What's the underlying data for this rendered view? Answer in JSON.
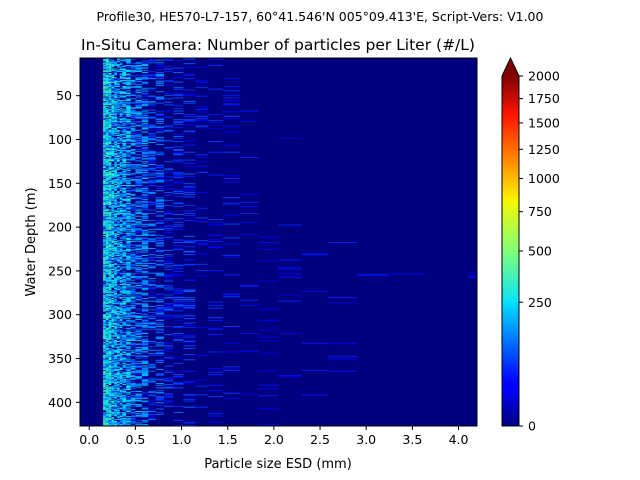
{
  "chart_data": {
    "type": "heatmap",
    "suptitle": "Profile30, HE570-L7-157, 60°41.546'N 005°09.413'E, Script-Vers: V1.00",
    "title": "In-Situ Camera: Number of particles per Liter (#/L)",
    "xlabel": "Particle size ESD (mm)",
    "ylabel": "Water Depth (m)",
    "xlim": [
      -0.1,
      4.2
    ],
    "ylim": [
      427,
      7
    ],
    "y_inverted": true,
    "x_ticks": [
      "0.0",
      "0.5",
      "1.0",
      "1.5",
      "2.0",
      "2.5",
      "3.0",
      "3.5",
      "4.0"
    ],
    "y_ticks": [
      "50",
      "100",
      "150",
      "200",
      "250",
      "300",
      "350",
      "400"
    ],
    "colorbar": {
      "colormap": "jet",
      "min": 0,
      "max": 2000,
      "scale": "power-like (square-root spacing)",
      "extend": "max",
      "ticks": [
        "0",
        "250",
        "500",
        "750",
        "1000",
        "1250",
        "1500",
        "1750",
        "2000"
      ]
    },
    "size_bins_mm": [
      0.15,
      0.18,
      0.21,
      0.24,
      0.27,
      0.3,
      0.33,
      0.36,
      0.4,
      0.45,
      0.5,
      0.57,
      0.64,
      0.72,
      0.81,
      0.91,
      1.02,
      1.15,
      1.29,
      1.45,
      1.63,
      1.83,
      2.05,
      2.3,
      2.58,
      2.9,
      3.25,
      3.65,
      4.1
    ],
    "depth_range_m": [
      7,
      427
    ],
    "depth_step_m": 1,
    "background_value": 0,
    "concentration_profile_note": "Concentrations highest (~100–350 #/L) in the smallest size classes (0.15–0.6 mm), decreasing with size; sparse sub-100 #/L values up to ~2.5 mm; isolated values up to ~3.0 mm near 255 m depth."
  }
}
